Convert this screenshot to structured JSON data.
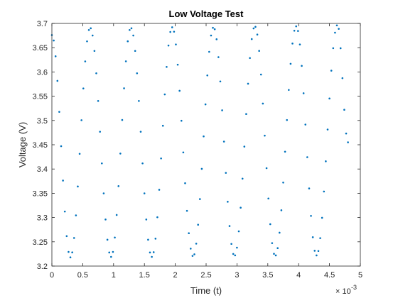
{
  "chart_data": {
    "type": "scatter",
    "title": "Low Voltage Test",
    "xlabel": "Time (t)",
    "ylabel": "Voltage (V)",
    "x_exponent_base": "× 10",
    "x_exponent_power": "-3",
    "xlim": [
      0,
      5
    ],
    "ylim": [
      3.2,
      3.7
    ],
    "x_ticks": [
      "0",
      "0.5",
      "1",
      "1.5",
      "2",
      "2.5",
      "3",
      "3.5",
      "4",
      "4.5",
      "5"
    ],
    "y_ticks": [
      "3.2",
      "3.25",
      "3.3",
      "3.35",
      "3.4",
      "3.45",
      "3.5",
      "3.55",
      "3.6",
      "3.65",
      "3.7"
    ],
    "grid": false,
    "marker_color": "#0072BD",
    "series": [
      {
        "x_start": 0,
        "x_end": 4.8,
        "x_step": 0.03,
        "points": [
          [
            0.0,
            3.676
          ],
          [
            0.3,
            3.218
          ],
          [
            0.62,
            3.691
          ],
          [
            0.96,
            3.219
          ],
          [
            1.28,
            3.691
          ],
          [
            1.62,
            3.219
          ],
          [
            1.95,
            3.692
          ],
          [
            2.29,
            3.22
          ],
          [
            2.62,
            3.692
          ],
          [
            2.96,
            3.221
          ],
          [
            3.29,
            3.694
          ],
          [
            3.62,
            3.221
          ],
          [
            3.96,
            3.694
          ],
          [
            4.29,
            3.222
          ],
          [
            4.63,
            3.697
          ],
          [
            4.8,
            3.455
          ]
        ]
      }
    ]
  }
}
